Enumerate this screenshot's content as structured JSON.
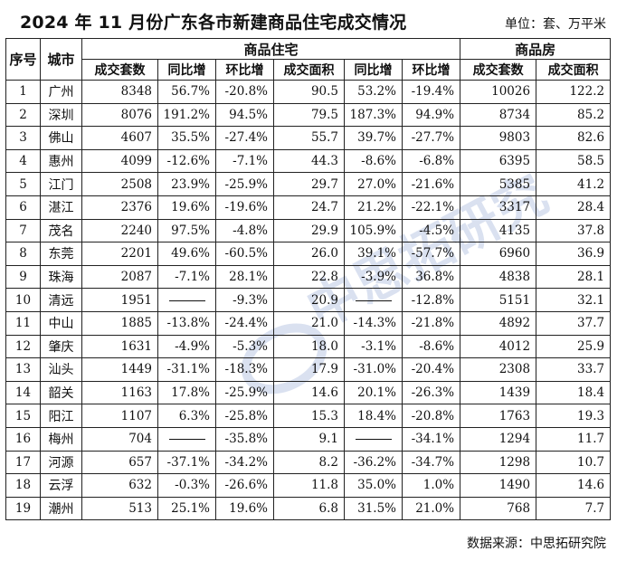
{
  "title": "2024 年 11 月份广东各市新建商品住宅成交情况",
  "unit": "单位：套、万平米",
  "headers": {
    "index": "序号",
    "city": "城市",
    "group_residential": "商品住宅",
    "group_commercial": "商品房",
    "sub": [
      "成交套数",
      "同比增",
      "环比增",
      "成交面积",
      "同比增",
      "环比增",
      "成交套数",
      "成交面积"
    ]
  },
  "rows": [
    {
      "no": "1",
      "city": "广州",
      "v": [
        "8348",
        "56.7%",
        "-20.8%",
        "90.5",
        "53.2%",
        "-19.4%",
        "10026",
        "122.2"
      ]
    },
    {
      "no": "2",
      "city": "深圳",
      "v": [
        "8076",
        "191.2%",
        "94.5%",
        "79.5",
        "187.3%",
        "94.9%",
        "8734",
        "85.2"
      ]
    },
    {
      "no": "3",
      "city": "佛山",
      "v": [
        "4607",
        "35.5%",
        "-27.4%",
        "55.7",
        "39.7%",
        "-27.7%",
        "9803",
        "82.6"
      ]
    },
    {
      "no": "4",
      "city": "惠州",
      "v": [
        "4099",
        "-12.6%",
        "-7.1%",
        "44.3",
        "-8.6%",
        "-6.8%",
        "6395",
        "58.5"
      ]
    },
    {
      "no": "5",
      "city": "江门",
      "v": [
        "2508",
        "23.9%",
        "-25.9%",
        "29.7",
        "27.0%",
        "-21.6%",
        "5385",
        "41.2"
      ]
    },
    {
      "no": "6",
      "city": "湛江",
      "v": [
        "2376",
        "19.6%",
        "-19.6%",
        "24.7",
        "21.2%",
        "-22.1%",
        "3317",
        "28.4"
      ]
    },
    {
      "no": "7",
      "city": "茂名",
      "v": [
        "2240",
        "97.5%",
        "-4.8%",
        "29.9",
        "105.9%",
        "-4.5%",
        "4135",
        "37.8"
      ]
    },
    {
      "no": "8",
      "city": "东莞",
      "v": [
        "2201",
        "49.6%",
        "-60.5%",
        "26.0",
        "39.1%",
        "-57.7%",
        "6960",
        "36.9"
      ]
    },
    {
      "no": "9",
      "city": "珠海",
      "v": [
        "2087",
        "-7.1%",
        "28.1%",
        "22.8",
        "-3.9%",
        "36.8%",
        "4838",
        "28.1"
      ]
    },
    {
      "no": "10",
      "city": "清远",
      "v": [
        "1951",
        "——",
        "-9.3%",
        "20.9",
        "——",
        "-12.8%",
        "5151",
        "32.1"
      ]
    },
    {
      "no": "11",
      "city": "中山",
      "v": [
        "1885",
        "-13.8%",
        "-24.4%",
        "21.0",
        "-14.3%",
        "-21.8%",
        "4892",
        "37.7"
      ]
    },
    {
      "no": "12",
      "city": "肇庆",
      "v": [
        "1631",
        "-4.9%",
        "-5.3%",
        "18.0",
        "-3.1%",
        "-8.6%",
        "4012",
        "25.9"
      ]
    },
    {
      "no": "13",
      "city": "汕头",
      "v": [
        "1449",
        "-31.1%",
        "-18.3%",
        "17.9",
        "-31.0%",
        "-20.4%",
        "2308",
        "33.7"
      ]
    },
    {
      "no": "14",
      "city": "韶关",
      "v": [
        "1163",
        "17.8%",
        "-25.9%",
        "14.6",
        "20.1%",
        "-26.3%",
        "1439",
        "18.4"
      ]
    },
    {
      "no": "15",
      "city": "阳江",
      "v": [
        "1107",
        "6.3%",
        "-25.8%",
        "15.3",
        "18.4%",
        "-20.8%",
        "1763",
        "19.3"
      ]
    },
    {
      "no": "16",
      "city": "梅州",
      "v": [
        "704",
        "——",
        "-35.8%",
        "9.1",
        "——",
        "-34.1%",
        "1294",
        "11.7"
      ]
    },
    {
      "no": "17",
      "city": "河源",
      "v": [
        "657",
        "-37.1%",
        "-34.2%",
        "8.2",
        "-36.2%",
        "-34.7%",
        "1298",
        "10.7"
      ]
    },
    {
      "no": "18",
      "city": "云浮",
      "v": [
        "632",
        "-0.3%",
        "-26.6%",
        "11.8",
        "35.0%",
        "1.0%",
        "1490",
        "14.6"
      ]
    },
    {
      "no": "19",
      "city": "潮州",
      "v": [
        "513",
        "25.1%",
        "19.6%",
        "6.8",
        "31.5%",
        "21.0%",
        "768",
        "7.7"
      ]
    }
  ],
  "footer": "数据来源：中思拓研究院",
  "watermark": "中思拓研究"
}
